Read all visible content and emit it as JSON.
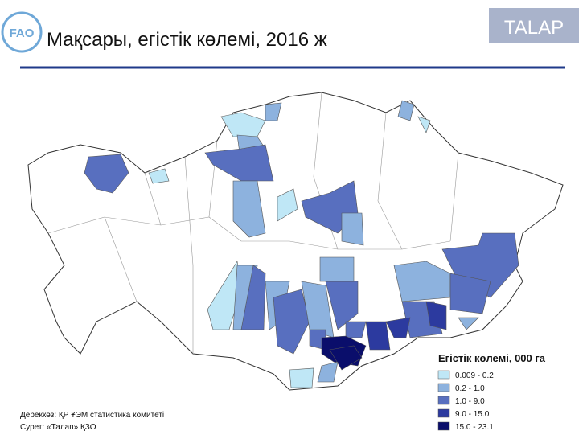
{
  "header": {
    "logo": "FAO",
    "title": "Мақсары, егістік көлемі, 2016 ж",
    "badge": "TALAP"
  },
  "legend": {
    "title": "Егістік көлемі, 000 га",
    "items": [
      {
        "label": "0.009 - 0.2",
        "color": "#bfe7f6"
      },
      {
        "label": "0.2 - 1.0",
        "color": "#8db2de"
      },
      {
        "label": "1.0 - 9.0",
        "color": "#586fbf"
      },
      {
        "label": "9.0 - 15.0",
        "color": "#2c3a9f"
      },
      {
        "label": "15.0 - 23.1",
        "color": "#0a0e6b"
      }
    ]
  },
  "footer": {
    "source": "Дереккөз: ҚР ҰЭМ статистика комитеті",
    "credit": "Сурет: «Талап» ҚЗО"
  }
}
